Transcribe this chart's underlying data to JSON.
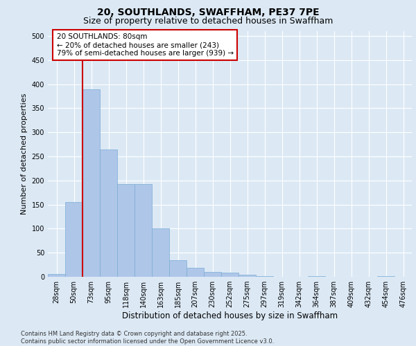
{
  "title_line1": "20, SOUTHLANDS, SWAFFHAM, PE37 7PE",
  "title_line2": "Size of property relative to detached houses in Swaffham",
  "xlabel": "Distribution of detached houses by size in Swaffham",
  "ylabel": "Number of detached properties",
  "categories": [
    "28sqm",
    "50sqm",
    "73sqm",
    "95sqm",
    "118sqm",
    "140sqm",
    "163sqm",
    "185sqm",
    "207sqm",
    "230sqm",
    "252sqm",
    "275sqm",
    "297sqm",
    "319sqm",
    "342sqm",
    "364sqm",
    "387sqm",
    "409sqm",
    "432sqm",
    "454sqm",
    "476sqm"
  ],
  "values": [
    6,
    155,
    390,
    265,
    192,
    192,
    100,
    35,
    19,
    10,
    9,
    4,
    1,
    0,
    0,
    1,
    0,
    0,
    0,
    1,
    0
  ],
  "bar_color": "#aec6e8",
  "bar_edge_color": "#7aadd4",
  "vline_color": "#cc0000",
  "annotation_box_text": "20 SOUTHLANDS: 80sqm\n← 20% of detached houses are smaller (243)\n79% of semi-detached houses are larger (939) →",
  "bg_color": "#dce9f5",
  "footer_text": "Contains HM Land Registry data © Crown copyright and database right 2025.\nContains public sector information licensed under the Open Government Licence v3.0.",
  "ylim": [
    0,
    510
  ],
  "yticks": [
    0,
    50,
    100,
    150,
    200,
    250,
    300,
    350,
    400,
    450,
    500
  ],
  "grid_color": "#ffffff",
  "title_fontsize": 10,
  "subtitle_fontsize": 9,
  "tick_fontsize": 7,
  "ylabel_fontsize": 8,
  "xlabel_fontsize": 8.5,
  "annotation_fontsize": 7.5,
  "footer_fontsize": 6
}
